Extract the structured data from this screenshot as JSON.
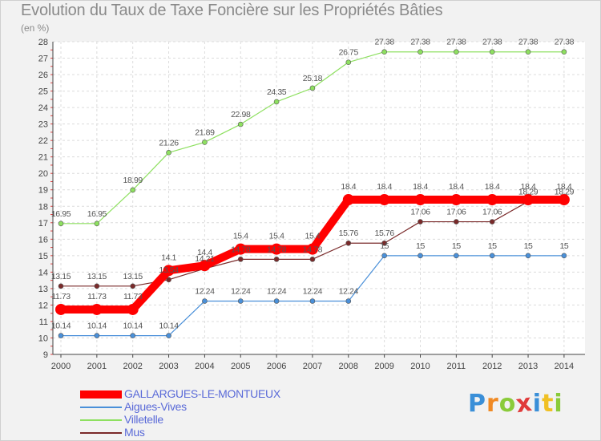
{
  "chart_data": {
    "type": "line",
    "title": "Evolution du Taux de Taxe Foncière sur les Propriétés Bâties",
    "subtitle": "(en %)",
    "x": [
      "2000",
      "2001",
      "2002",
      "2003",
      "2004",
      "2005",
      "2006",
      "2007",
      "2008",
      "2009",
      "2010",
      "2011",
      "2012",
      "2013",
      "2014"
    ],
    "ylim": [
      9,
      28
    ],
    "yticks": [
      9,
      10,
      11,
      12,
      13,
      14,
      15,
      16,
      17,
      18,
      19,
      20,
      21,
      22,
      23,
      24,
      25,
      26,
      27,
      28
    ],
    "grid": true,
    "legend_position": "bottom-left",
    "series": [
      {
        "name": "GALLARGUES-LE-MONTUEUX",
        "color": "#ff0000",
        "values": [
          11.73,
          11.73,
          11.73,
          14.1,
          14.4,
          15.4,
          15.4,
          15.4,
          18.4,
          18.4,
          18.4,
          18.4,
          18.4,
          18.4,
          18.4
        ],
        "labels": [
          "11.73",
          "11.73",
          "11.73",
          "14.1",
          "14.4",
          "15.4",
          "15.4",
          "15.4",
          "18.4",
          "18.4",
          "18.4",
          "18.4",
          "18.4",
          "18.4",
          "18.4"
        ]
      },
      {
        "name": "Aigues-Vives",
        "color": "#4a90d9",
        "values": [
          10.14,
          10.14,
          10.14,
          10.14,
          12.24,
          12.24,
          12.24,
          12.24,
          12.24,
          15,
          15,
          15,
          15,
          15,
          15
        ],
        "labels": [
          "10.14",
          "10.14",
          "10.14",
          "10.14",
          "12.24",
          "12.24",
          "12.24",
          "12.24",
          "12.24",
          "15",
          "15",
          "15",
          "15",
          "15",
          "15"
        ]
      },
      {
        "name": "Villetelle",
        "color": "#8ee060",
        "values": [
          16.95,
          16.95,
          18.99,
          21.26,
          21.89,
          22.98,
          24.35,
          25.18,
          26.75,
          27.38,
          27.38,
          27.38,
          27.38,
          27.38,
          27.38
        ],
        "labels": [
          "16.95",
          "16.95",
          "18.99",
          "21.26",
          "21.89",
          "22.98",
          "24.35",
          "25.18",
          "26.75",
          "27.38",
          "27.38",
          "27.38",
          "27.38",
          "27.38",
          "27.38"
        ]
      },
      {
        "name": "Mus",
        "color": "#7a2a2a",
        "values": [
          13.15,
          13.15,
          13.15,
          13.54,
          14.21,
          14.78,
          14.78,
          14.78,
          15.76,
          15.76,
          17.06,
          17.06,
          17.06,
          18.29,
          18.29
        ],
        "labels": [
          "13.15",
          "13.15",
          "13.15",
          "13.54",
          "14.21",
          "14.78",
          "14.78",
          "14.78",
          "15.76",
          "15.76",
          "17.06",
          "17.06",
          "17.06",
          "18.29",
          "18.29"
        ]
      }
    ]
  },
  "brand": {
    "letters": [
      "P",
      "r",
      "o",
      "x",
      "i",
      "t",
      "i"
    ],
    "colors": [
      "#3a8fd8",
      "#f08a24",
      "#8acb3a",
      "#e03a3a",
      "#3a8fd8",
      "#f0c024",
      "#8acb3a"
    ]
  }
}
